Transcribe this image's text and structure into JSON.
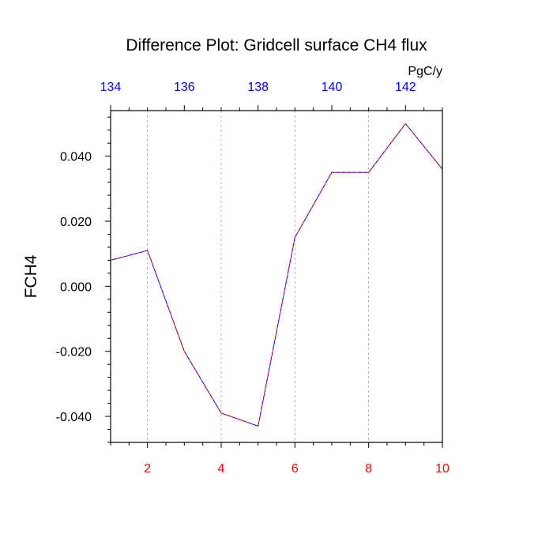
{
  "colors": {
    "axis": "#000000",
    "top_axis_text": "#0000ff",
    "bottom_axis_text": "#ff0000",
    "series_a": "#ff0000",
    "series_b": "#0000ff",
    "grid": "#aaaaaa"
  },
  "chart_data": {
    "type": "line",
    "title": "Difference Plot: Gridcell surface CH4 flux",
    "ylabel": "FCH4",
    "units": "PgC/y",
    "x": [
      1,
      2,
      3,
      4,
      5,
      6,
      7,
      8,
      9,
      10
    ],
    "series": [
      {
        "values": [
          0.008,
          0.011,
          -0.02,
          -0.039,
          -0.043,
          0.015,
          0.035,
          0.035,
          0.05,
          0.036
        ]
      }
    ],
    "xlim": [
      1,
      10
    ],
    "ylim": [
      -0.048,
      0.054
    ],
    "x_ticks": [
      2,
      4,
      6,
      8,
      10
    ],
    "x_tick_labels": [
      "2",
      "4",
      "6",
      "8",
      "10"
    ],
    "top_xlim": [
      134,
      143
    ],
    "top_ticks": [
      134,
      136,
      138,
      140,
      142
    ],
    "top_tick_labels": [
      "134",
      "136",
      "138",
      "140",
      "142"
    ],
    "y_ticks": [
      0.04,
      0.02,
      0.0,
      -0.02,
      -0.04
    ],
    "y_tick_labels": [
      "0.040",
      "0.020",
      "0.000",
      "-0.020",
      "-0.040"
    ],
    "grid": "vertical dashed at major x ticks",
    "line_style": "dashed"
  }
}
